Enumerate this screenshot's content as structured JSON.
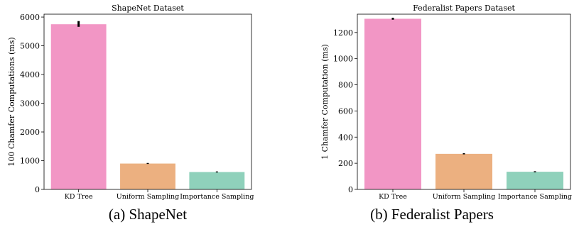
{
  "chart_data": [
    {
      "type": "bar",
      "title": "ShapeNet Dataset",
      "xlabel": "",
      "ylabel": "100 Chamfer Computations (ms)",
      "categories": [
        "KD Tree",
        "Uniform Sampling",
        "Importance Sampling"
      ],
      "values": [
        5750,
        900,
        605
      ],
      "errors": [
        [
          5660,
          5860
        ],
        [
          885,
          920
        ],
        [
          590,
          625
        ]
      ],
      "ylim": [
        0,
        6100
      ],
      "yticks": [
        0,
        1000,
        2000,
        3000,
        4000,
        5000,
        6000
      ],
      "colors": [
        "#f296c5",
        "#ecb080",
        "#8fd1bb"
      ],
      "caption": "(a) ShapeNet"
    },
    {
      "type": "bar",
      "title": "Federalist Papers Dataset",
      "xlabel": "",
      "ylabel": "1 Chamfer Computation (ms)",
      "categories": [
        "KD Tree",
        "Uniform Sampling",
        "Importance Sampling"
      ],
      "values": [
        1305,
        272,
        135
      ],
      "errors": [
        [
          1298,
          1313
        ],
        [
          268,
          277
        ],
        [
          131,
          139
        ]
      ],
      "ylim": [
        0,
        1340
      ],
      "yticks": [
        0,
        200,
        400,
        600,
        800,
        1000,
        1200
      ],
      "colors": [
        "#f296c5",
        "#ecb080",
        "#8fd1bb"
      ],
      "caption": "(b) Federalist Papers"
    }
  ]
}
